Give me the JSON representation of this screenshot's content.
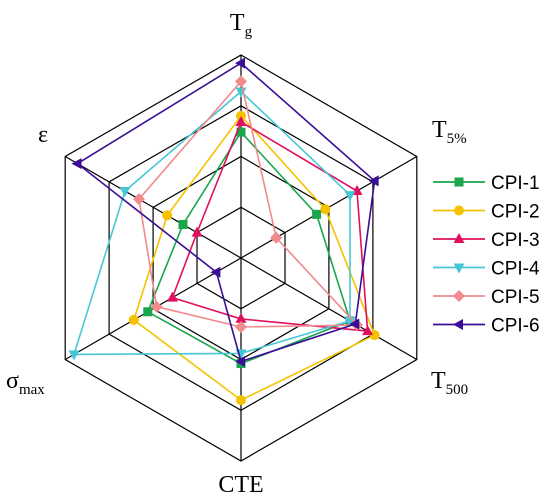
{
  "chart_data": {
    "type": "radar",
    "axes": [
      {
        "main": "T",
        "sub": "g"
      },
      {
        "main": "T",
        "sub": "5%"
      },
      {
        "main": "T",
        "sub": "500"
      },
      {
        "main": "CTE",
        "sub": ""
      },
      {
        "main": "σ",
        "sub": "max"
      },
      {
        "main": "ε",
        "sub": ""
      }
    ],
    "rings": 4,
    "range": [
      0,
      1
    ],
    "grid": true,
    "legend_position": "right",
    "series": [
      {
        "name": "CPI-1",
        "color": "#1aa64a",
        "marker": "square",
        "values": [
          0.62,
          0.43,
          0.62,
          0.52,
          0.53,
          0.33
        ]
      },
      {
        "name": "CPI-2",
        "color": "#f5c200",
        "marker": "circle",
        "values": [
          0.7,
          0.48,
          0.76,
          0.7,
          0.61,
          0.42
        ]
      },
      {
        "name": "CPI-3",
        "color": "#e0105e",
        "marker": "triangle-up",
        "values": [
          0.67,
          0.66,
          0.72,
          0.3,
          0.39,
          0.25
        ]
      },
      {
        "name": "CPI-4",
        "color": "#47c7d6",
        "marker": "triangle-down",
        "values": [
          0.82,
          0.62,
          0.62,
          0.47,
          0.95,
          0.66
        ]
      },
      {
        "name": "CPI-5",
        "color": "#f08a8c",
        "marker": "diamond",
        "values": [
          0.87,
          0.2,
          0.66,
          0.34,
          0.48,
          0.58
        ]
      },
      {
        "name": "CPI-6",
        "color": "#3a0e96",
        "marker": "triangle-left",
        "values": [
          0.96,
          0.76,
          0.65,
          0.51,
          0.14,
          0.93
        ]
      }
    ]
  }
}
